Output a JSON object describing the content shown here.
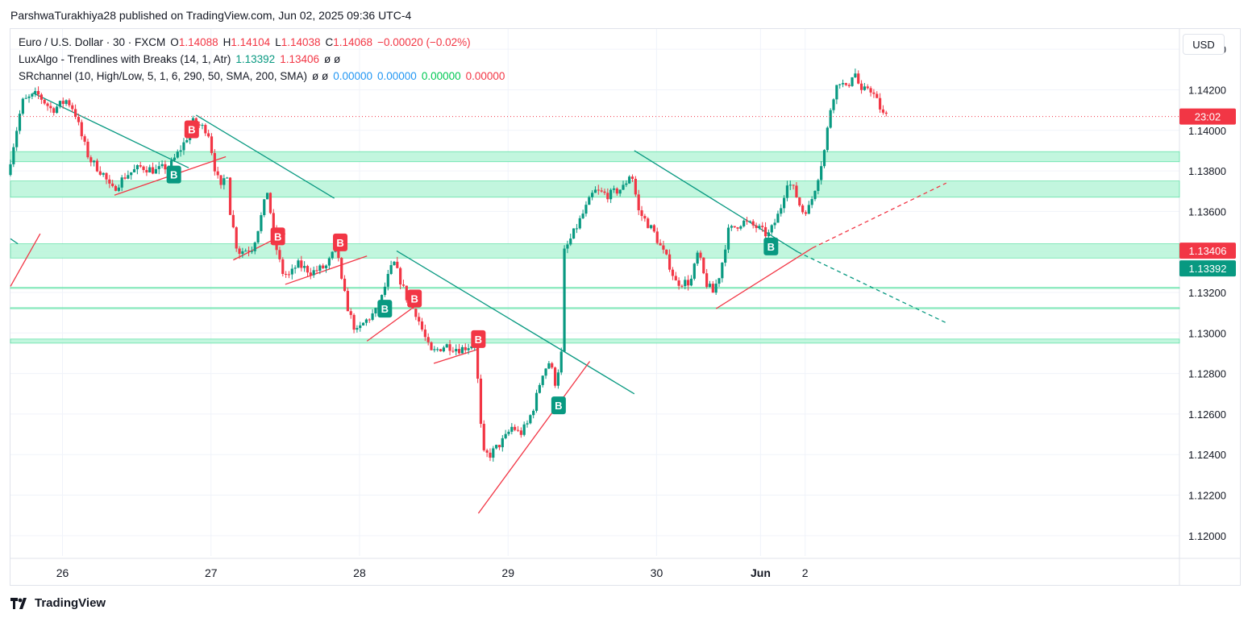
{
  "header": {
    "publisher": "ParshwaTurakhiya28 published on TradingView.com, Jun 02, 2025 09:36 UTC-4"
  },
  "legend": {
    "symbol": "Euro / U.S. Dollar · 30 · FXCM",
    "open_label": "O",
    "open": "1.14088",
    "high_label": "H",
    "high": "1.14104",
    "low_label": "L",
    "low": "1.14038",
    "close_label": "C",
    "close": "1.14068",
    "change": "−0.00020 (−0.02%)",
    "indicator1_name": "LuxAlgo - Trendlines with Breaks (14, 1, Atr)",
    "indicator1_v1": "1.13392",
    "indicator1_v2": "1.13406",
    "indicator1_na": "ø ø",
    "indicator2_name": "SRchannel (10, High/Low, 5, 1, 6, 290, 50, SMA, 200, SMA)",
    "indicator2_na": "ø ø",
    "indicator2_v1": "0.00000",
    "indicator2_v2": "0.00000",
    "indicator2_v3": "0.00000",
    "indicator2_v4": "0.00000"
  },
  "currency_button": "USD",
  "brand": "TradingView",
  "colors": {
    "up": "#089981",
    "down": "#f23645",
    "zone": "#b7f5d8",
    "zone_border": "#55dea0",
    "trend_down": "#089981",
    "trend_up": "#f23645"
  },
  "chart_data": {
    "type": "candlestick",
    "y_axis": {
      "range": [
        1.119,
        1.145
      ],
      "ticks": [
        "1.14400",
        "1.14200",
        "1.14000",
        "1.13800",
        "1.13600",
        "1.13400",
        "1.13200",
        "1.13000",
        "1.12800",
        "1.12600",
        "1.12400",
        "1.12200",
        "1.12000"
      ]
    },
    "x_axis": {
      "range": [
        -0.35,
        7.52
      ],
      "ticks": [
        {
          "label": "26",
          "x": 0
        },
        {
          "label": "27",
          "x": 1
        },
        {
          "label": "28",
          "x": 2
        },
        {
          "label": "29",
          "x": 3
        },
        {
          "label": "30",
          "x": 4
        },
        {
          "label": "Jun",
          "x": 4.7
        },
        {
          "label": "2",
          "x": 5
        }
      ]
    },
    "price_labels": [
      {
        "text": "23:02",
        "price": 1.14068,
        "color": "#f23645"
      },
      {
        "text": "1.13406",
        "price": 1.13406,
        "color": "#f23645"
      },
      {
        "text": "1.13392",
        "price": 1.13392,
        "color": "#089981"
      }
    ],
    "last_price": 1.14068,
    "zones": [
      {
        "top": 1.13895,
        "bottom": 1.13845
      },
      {
        "top": 1.1375,
        "bottom": 1.1367
      },
      {
        "top": 1.1344,
        "bottom": 1.1337
      },
      {
        "top": 1.13225,
        "bottom": 1.1322
      },
      {
        "top": 1.13125,
        "bottom": 1.1312
      },
      {
        "top": 1.1297,
        "bottom": 1.1295
      }
    ],
    "trendlines": [
      {
        "kind": "down",
        "x1": -0.2,
        "y1": 1.14185,
        "x2": 0.85,
        "y2": 1.13815,
        "dashed": false
      },
      {
        "kind": "down",
        "x1": 0.9,
        "y1": 1.14075,
        "x2": 1.83,
        "y2": 1.13665,
        "dashed": false
      },
      {
        "kind": "down",
        "x1": 2.25,
        "y1": 1.13405,
        "x2": 3.85,
        "y2": 1.127,
        "dashed": false
      },
      {
        "kind": "down",
        "x1": 3.85,
        "y1": 1.139,
        "x2": 4.95,
        "y2": 1.134,
        "dashed": false
      },
      {
        "kind": "down",
        "x1": 4.95,
        "y1": 1.134,
        "x2": 5.95,
        "y2": 1.1305,
        "dashed": true
      },
      {
        "kind": "up",
        "x1": -0.35,
        "y1": 1.1323,
        "x2": -0.15,
        "y2": 1.1349,
        "dashed": false
      },
      {
        "kind": "up",
        "x1": 0.35,
        "y1": 1.1368,
        "x2": 1.1,
        "y2": 1.1387,
        "dashed": false
      },
      {
        "kind": "up",
        "x1": 1.15,
        "y1": 1.1336,
        "x2": 1.5,
        "y2": 1.1349,
        "dashed": false
      },
      {
        "kind": "up",
        "x1": 1.5,
        "y1": 1.1324,
        "x2": 2.05,
        "y2": 1.1338,
        "dashed": false
      },
      {
        "kind": "up",
        "x1": 2.05,
        "y1": 1.1296,
        "x2": 2.35,
        "y2": 1.1312,
        "dashed": false
      },
      {
        "kind": "up",
        "x1": 2.5,
        "y1": 1.1285,
        "x2": 2.8,
        "y2": 1.1292,
        "dashed": false
      },
      {
        "kind": "up",
        "x1": 2.8,
        "y1": 1.1211,
        "x2": 3.55,
        "y2": 1.1286,
        "dashed": false
      },
      {
        "kind": "up",
        "x1": 4.4,
        "y1": 1.1312,
        "x2": 5.05,
        "y2": 1.1342,
        "dashed": false
      },
      {
        "kind": "up",
        "x1": 5.05,
        "y1": 1.1342,
        "x2": 5.95,
        "y2": 1.1374,
        "dashed": true
      },
      {
        "kind": "down",
        "x1": -0.35,
        "y1": 1.13465,
        "x2": -0.3,
        "y2": 1.1344,
        "dashed": false
      }
    ],
    "break_markers": [
      {
        "label": "B",
        "type": "sell",
        "x": 0.87,
        "price": 1.14005
      },
      {
        "label": "B",
        "type": "buy",
        "x": 0.75,
        "price": 1.13782
      },
      {
        "label": "B",
        "type": "sell",
        "x": 1.45,
        "price": 1.13477
      },
      {
        "label": "B",
        "type": "sell",
        "x": 1.87,
        "price": 1.13447
      },
      {
        "label": "B",
        "type": "buy",
        "x": 2.17,
        "price": 1.1312
      },
      {
        "label": "B",
        "type": "sell",
        "x": 2.37,
        "price": 1.1317
      },
      {
        "label": "B",
        "type": "sell",
        "x": 2.8,
        "price": 1.1297
      },
      {
        "label": "B",
        "type": "buy",
        "x": 3.34,
        "price": 1.12643
      },
      {
        "label": "B",
        "type": "buy",
        "x": 4.77,
        "price": 1.13427
      }
    ],
    "waypoints": [
      [
        -0.35,
        1.1378
      ],
      [
        -0.25,
        1.1414
      ],
      [
        -0.15,
        1.1418
      ],
      [
        -0.05,
        1.141
      ],
      [
        0.05,
        1.1415
      ],
      [
        0.1,
        1.141
      ],
      [
        0.15,
        1.1397
      ],
      [
        0.2,
        1.1386
      ],
      [
        0.3,
        1.1378
      ],
      [
        0.35,
        1.137
      ],
      [
        0.45,
        1.1378
      ],
      [
        0.55,
        1.1382
      ],
      [
        0.65,
        1.138
      ],
      [
        0.75,
        1.1383
      ],
      [
        0.85,
        1.1395
      ],
      [
        0.9,
        1.1404
      ],
      [
        1.0,
        1.14
      ],
      [
        1.05,
        1.138
      ],
      [
        1.1,
        1.1368
      ],
      [
        1.12,
        1.1387
      ],
      [
        1.15,
        1.136
      ],
      [
        1.2,
        1.134
      ],
      [
        1.3,
        1.1342
      ],
      [
        1.35,
        1.1355
      ],
      [
        1.4,
        1.137
      ],
      [
        1.45,
        1.1345
      ],
      [
        1.5,
        1.133
      ],
      [
        1.55,
        1.1328
      ],
      [
        1.6,
        1.1334
      ],
      [
        1.7,
        1.133
      ],
      [
        1.8,
        1.1333
      ],
      [
        1.87,
        1.1343
      ],
      [
        1.9,
        1.1325
      ],
      [
        1.95,
        1.131
      ],
      [
        2.0,
        1.13
      ],
      [
        2.05,
        1.1305
      ],
      [
        2.15,
        1.1312
      ],
      [
        2.2,
        1.1325
      ],
      [
        2.25,
        1.1335
      ],
      [
        2.3,
        1.1325
      ],
      [
        2.35,
        1.1315
      ],
      [
        2.4,
        1.131
      ],
      [
        2.45,
        1.13
      ],
      [
        2.5,
        1.129
      ],
      [
        2.6,
        1.1294
      ],
      [
        2.7,
        1.1292
      ],
      [
        2.8,
        1.1295
      ],
      [
        2.85,
        1.124
      ],
      [
        2.9,
        1.124
      ],
      [
        3.0,
        1.1248
      ],
      [
        3.05,
        1.1254
      ],
      [
        3.1,
        1.125
      ],
      [
        3.15,
        1.1255
      ],
      [
        3.2,
        1.1265
      ],
      [
        3.25,
        1.128
      ],
      [
        3.3,
        1.1286
      ],
      [
        3.34,
        1.1275
      ],
      [
        3.38,
        1.129
      ],
      [
        3.4,
        1.134
      ],
      [
        3.5,
        1.1355
      ],
      [
        3.6,
        1.137
      ],
      [
        3.7,
        1.1368
      ],
      [
        3.8,
        1.1372
      ],
      [
        3.85,
        1.138
      ],
      [
        3.9,
        1.136
      ],
      [
        4.0,
        1.135
      ],
      [
        4.05,
        1.1342
      ],
      [
        4.1,
        1.1335
      ],
      [
        4.15,
        1.1325
      ],
      [
        4.25,
        1.1325
      ],
      [
        4.3,
        1.134
      ],
      [
        4.35,
        1.1325
      ],
      [
        4.4,
        1.132
      ],
      [
        4.45,
        1.133
      ],
      [
        4.5,
        1.135
      ],
      [
        4.6,
        1.1355
      ],
      [
        4.7,
        1.1352
      ],
      [
        4.77,
        1.1348
      ],
      [
        4.8,
        1.1352
      ],
      [
        4.85,
        1.136
      ],
      [
        4.9,
        1.1375
      ],
      [
        4.95,
        1.137
      ],
      [
        5.0,
        1.136
      ],
      [
        5.05,
        1.1362
      ],
      [
        5.1,
        1.1375
      ],
      [
        5.15,
        1.139
      ],
      [
        5.2,
        1.1415
      ],
      [
        5.25,
        1.1425
      ],
      [
        5.3,
        1.142
      ],
      [
        5.35,
        1.143
      ],
      [
        5.4,
        1.1418
      ],
      [
        5.45,
        1.1422
      ],
      [
        5.5,
        1.1415
      ],
      [
        5.55,
        1.1407
      ]
    ]
  }
}
